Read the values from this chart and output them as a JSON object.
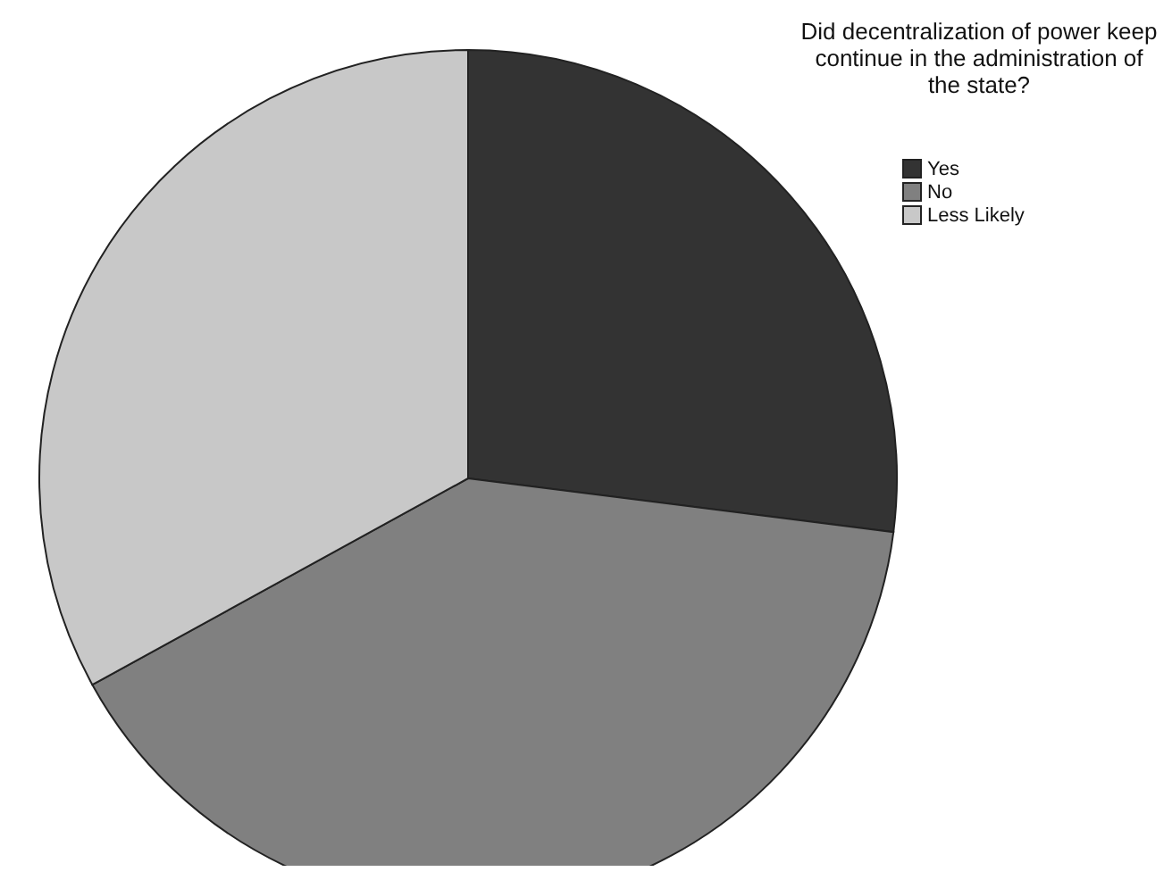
{
  "chart_data": {
    "type": "pie",
    "title": "Did decentralization of power keep continue in the administration of the state?",
    "categories": [
      "Yes",
      "No",
      "Less Likely"
    ],
    "values": [
      27,
      40,
      33
    ],
    "colors": [
      "#333333",
      "#808080",
      "#c8c8c8"
    ],
    "legend": "top right"
  }
}
